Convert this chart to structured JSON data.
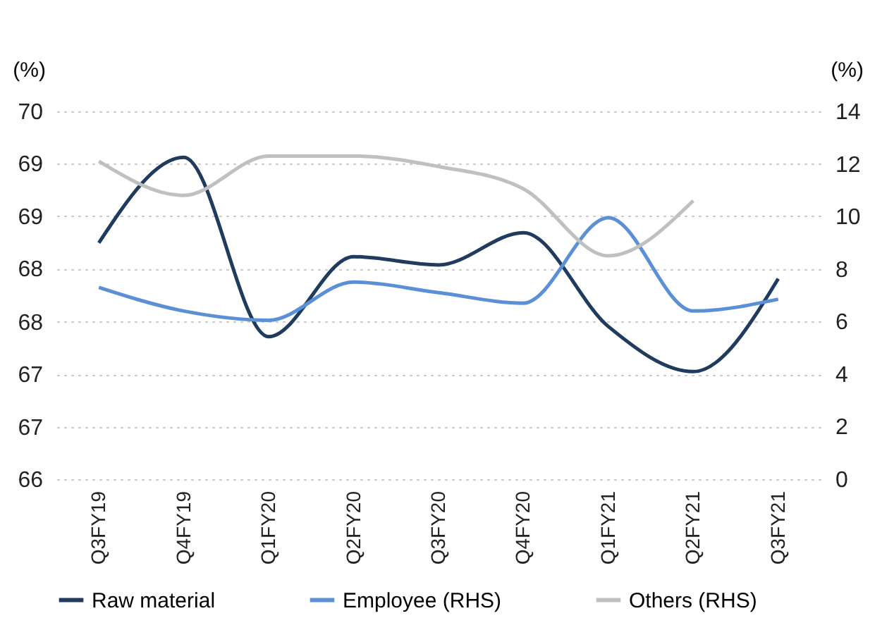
{
  "chart_data": {
    "type": "line",
    "ylabel": "(%)",
    "y2label": "(%)",
    "categories": [
      "Q3FY19",
      "Q4FY19",
      "Q1FY20",
      "Q2FY20",
      "Q3FY20",
      "Q4FY20",
      "Q1FY21",
      "Q2FY21",
      "Q3FY21"
    ],
    "series": [
      {
        "name": "Raw material",
        "color": "#1f3b5e",
        "values": [
          68.57,
          69.5,
          67.55,
          68.42,
          68.33,
          68.68,
          67.66,
          67.17,
          68.18
        ]
      },
      {
        "name": "Employee (RHS)",
        "color": "#5b8fd6",
        "axis": "y2",
        "values": [
          7.3,
          6.4,
          6.05,
          7.5,
          7.1,
          6.7,
          9.95,
          6.4,
          6.85
        ]
      },
      {
        "name": "Others (RHS)",
        "color": "#c0c0c0",
        "axis": "y2",
        "values": [
          12.1,
          10.8,
          12.3,
          12.3,
          11.9,
          11.05,
          8.5,
          10.6,
          null
        ]
      }
    ],
    "ylim": [
      66,
      70
    ],
    "yticks": [
      66,
      {
        "value": 66.57,
        "label": "67"
      },
      {
        "value": 67.14,
        "label": "67"
      },
      {
        "value": 67.71,
        "label": "68"
      },
      {
        "value": 68.29,
        "label": "68"
      },
      {
        "value": 68.86,
        "label": "69"
      },
      {
        "value": 69.43,
        "label": "69"
      },
      70
    ],
    "y2lim": [
      0,
      14
    ],
    "y2ticks": [
      0,
      2,
      4,
      6,
      8,
      10,
      12,
      14
    ],
    "grid": "y",
    "legend": "bottom",
    "marker": "none",
    "line_style": "solid"
  }
}
